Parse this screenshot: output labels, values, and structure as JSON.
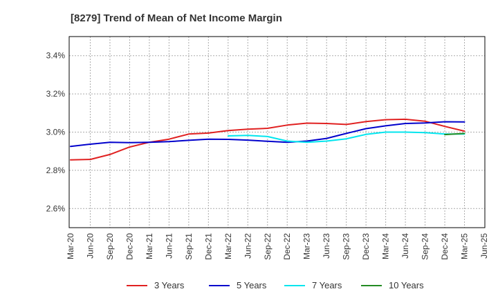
{
  "chart_data": {
    "type": "line",
    "title": "[8279]  Trend of Mean of Net Income Margin",
    "xlabel": "",
    "ylabel": "",
    "x_ticks": [
      "Mar-20",
      "Jun-20",
      "Sep-20",
      "Dec-20",
      "Mar-21",
      "Jun-21",
      "Sep-21",
      "Dec-21",
      "Mar-22",
      "Jun-22",
      "Sep-22",
      "Dec-22",
      "Mar-23",
      "Jun-23",
      "Sep-23",
      "Dec-23",
      "Mar-24",
      "Jun-24",
      "Sep-24",
      "Dec-24",
      "Mar-25",
      "Jun-25"
    ],
    "y_ticks": [
      {
        "value": 2.6,
        "label": "2.6%"
      },
      {
        "value": 2.8,
        "label": "2.8%"
      },
      {
        "value": 3.0,
        "label": "3.0%"
      },
      {
        "value": 3.2,
        "label": "3.2%"
      },
      {
        "value": 3.4,
        "label": "3.4%"
      }
    ],
    "ylim": [
      2.5,
      3.5
    ],
    "grid": true,
    "legend_position": "bottom",
    "series": [
      {
        "name": "3 Years",
        "color": "#e02020",
        "start_index": 0,
        "values": [
          2.855,
          2.857,
          2.883,
          2.922,
          2.947,
          2.963,
          2.99,
          2.995,
          3.008,
          3.015,
          3.02,
          3.037,
          3.047,
          3.045,
          3.04,
          3.055,
          3.065,
          3.067,
          3.057,
          3.03,
          3.005
        ]
      },
      {
        "name": "5 Years",
        "color": "#0000cc",
        "start_index": 0,
        "values": [
          2.925,
          2.937,
          2.947,
          2.945,
          2.947,
          2.95,
          2.957,
          2.963,
          2.962,
          2.958,
          2.952,
          2.947,
          2.953,
          2.967,
          2.993,
          3.018,
          3.033,
          3.045,
          3.048,
          3.054,
          3.053
        ]
      },
      {
        "name": "7 Years",
        "color": "#00e5ee",
        "start_index": 8,
        "values": [
          2.98,
          2.983,
          2.977,
          2.953,
          2.947,
          2.953,
          2.965,
          2.988,
          3.0,
          3.0,
          2.997,
          2.99,
          2.99
        ]
      },
      {
        "name": "10 Years",
        "color": "#228b22",
        "start_index": 19,
        "values": [
          2.987,
          2.993
        ]
      }
    ]
  }
}
